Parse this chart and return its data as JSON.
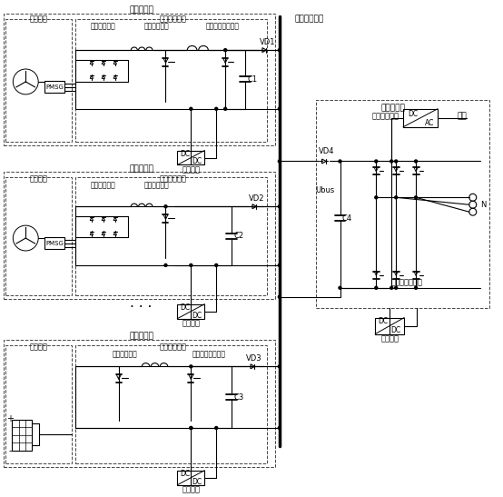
{
  "bg_color": "#ffffff",
  "font_size_large": 7.5,
  "font_size_medium": 6.5,
  "font_size_small": 6.0,
  "labels": {
    "sys_bus": "系统直流母线",
    "power_grid": "电网",
    "subsys1": "发电子系统",
    "subsys2": "发电子系统",
    "subsys3": "发电子系统",
    "gen_dev": "发电装置",
    "conv_mod": "电流变换模块",
    "rect1": "第一整流单元",
    "rect2": "第二整流单元",
    "chop1": "第一卸荷单元",
    "chop2": "第二卸荷单元",
    "chop3": "第三卸荷单元",
    "dcdc1": "第一电压变换单元",
    "dcdc2": "第二电压变换单元",
    "aux": "辅助电源",
    "grid_inv": "并网逆变器",
    "three_phase": "三相逆变桥电路",
    "third_rect": "第三整流单元",
    "pmsg": "PMSG",
    "c1": "C1",
    "c2": "C2",
    "c3": "C3",
    "c4": "C4",
    "vd1": "VD1",
    "vd2": "VD2",
    "vd3": "VD3",
    "vd4": "VD4",
    "ubus": "Ubus",
    "N": "N"
  }
}
